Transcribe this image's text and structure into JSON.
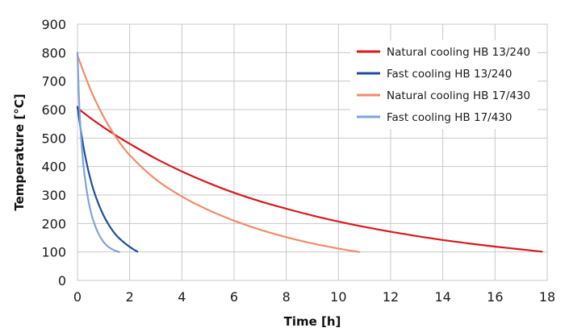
{
  "chart_data": {
    "type": "line",
    "title": "",
    "xlabel": "Time [h]",
    "ylabel": "Temperature [°C]",
    "xlim": [
      0,
      18
    ],
    "ylim": [
      0,
      900
    ],
    "xticks": [
      0,
      2,
      4,
      6,
      8,
      10,
      12,
      14,
      16,
      18
    ],
    "yticks": [
      0,
      100,
      200,
      300,
      400,
      500,
      600,
      700,
      800,
      900
    ],
    "grid": true,
    "legend_position": "top-right",
    "series": [
      {
        "name": "Natural cooling HB 13/240",
        "color": "#d7191c",
        "x": [
          0,
          0.5,
          1,
          1.5,
          2,
          3,
          4,
          5,
          6,
          7,
          8,
          9,
          10,
          11,
          12,
          13,
          14,
          15,
          16,
          17,
          17.8
        ],
        "y": [
          605,
          570,
          538,
          508,
          480,
          428,
          383,
          343,
          308,
          278,
          252,
          228,
          207,
          188,
          171,
          156,
          142,
          130,
          119,
          109,
          101
        ]
      },
      {
        "name": "Fast cooling HB 13/240",
        "color": "#1f4e9c",
        "x": [
          0,
          0.1,
          0.2,
          0.3,
          0.4,
          0.5,
          0.6,
          0.8,
          1.0,
          1.2,
          1.4,
          1.6,
          1.8,
          2.0,
          2.2,
          2.3
        ],
        "y": [
          610,
          545,
          485,
          435,
          392,
          355,
          322,
          270,
          228,
          195,
          168,
          148,
          132,
          118,
          106,
          101
        ]
      },
      {
        "name": "Natural cooling HB 17/430",
        "color": "#f08c6a",
        "x": [
          0,
          0.5,
          1,
          1.5,
          2,
          3,
          4,
          5,
          6,
          7,
          8,
          9,
          10,
          10.8
        ],
        "y": [
          790,
          670,
          575,
          500,
          440,
          355,
          295,
          248,
          210,
          178,
          152,
          130,
          112,
          100
        ]
      },
      {
        "name": "Fast cooling HB 17/430",
        "color": "#7ea4d8",
        "x": [
          0,
          0.05,
          0.1,
          0.2,
          0.3,
          0.4,
          0.5,
          0.6,
          0.8,
          1.0,
          1.2,
          1.4,
          1.6
        ],
        "y": [
          800,
          660,
          560,
          430,
          350,
          290,
          245,
          212,
          165,
          135,
          117,
          106,
          100
        ]
      }
    ]
  }
}
